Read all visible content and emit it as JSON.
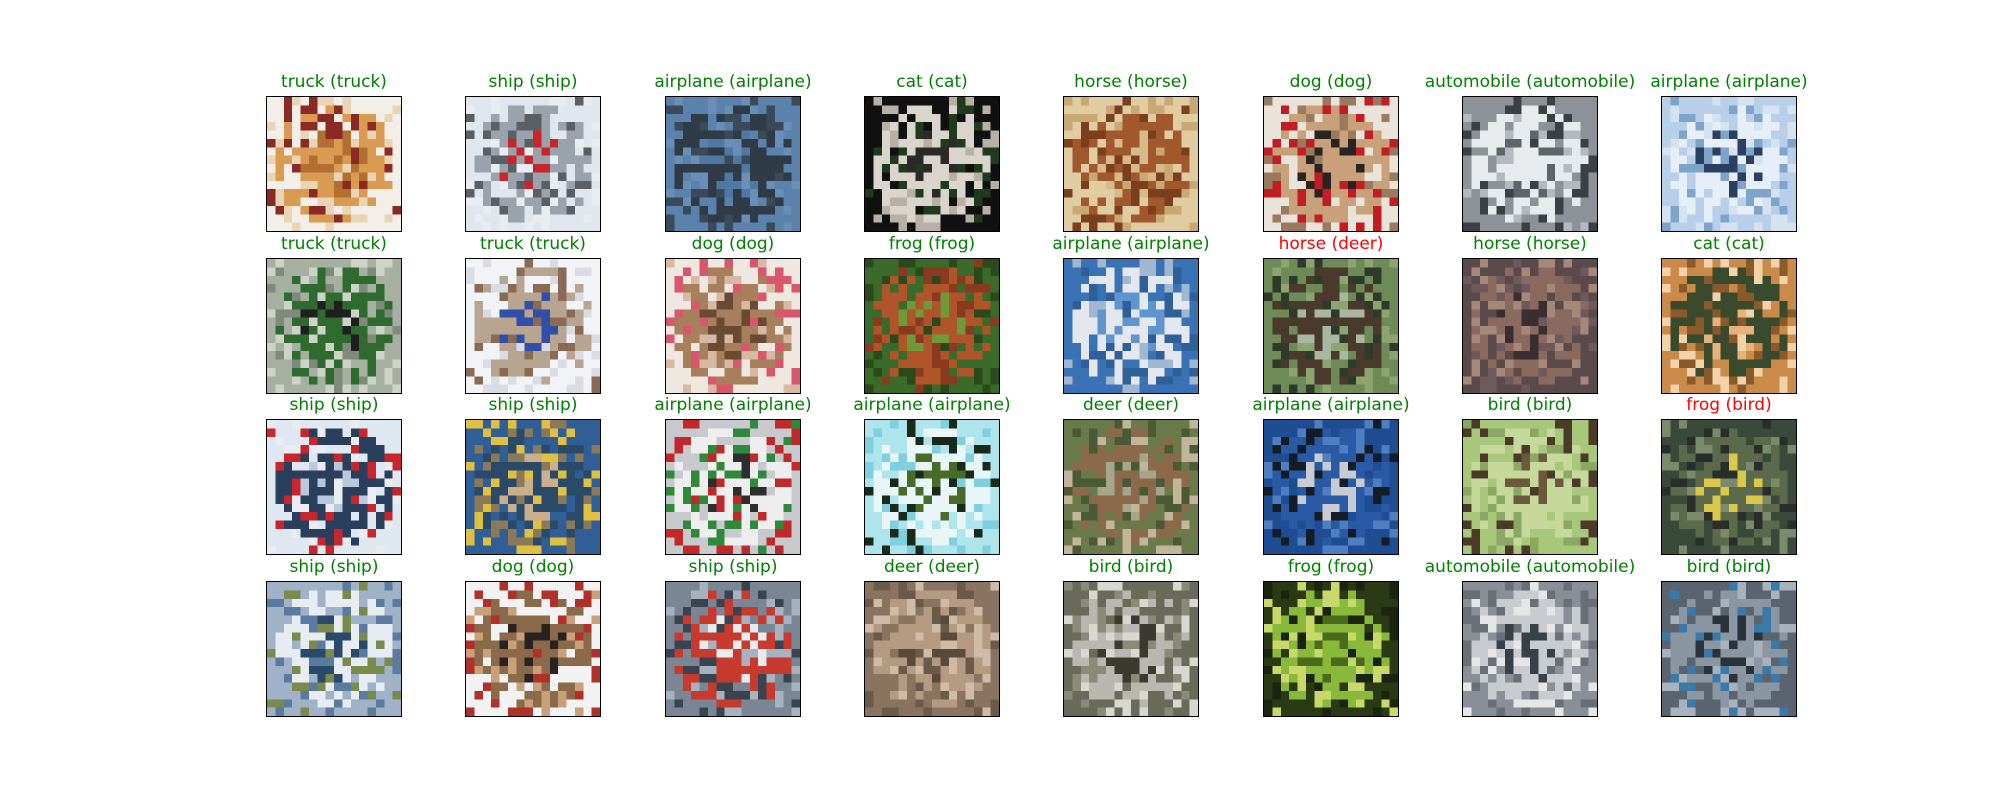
{
  "figure": {
    "colors": {
      "correct": "#008000",
      "incorrect": "#ff0000"
    },
    "images": [
      {
        "caption": "truck (truck)",
        "predicted": "truck",
        "actual": "truck",
        "correct": true,
        "icon": "truck-photo",
        "palette": [
          "#f3efe8",
          "#d99a52",
          "#b36e32",
          "#8a2a22",
          "#e9d4b5"
        ]
      },
      {
        "caption": "ship (ship)",
        "predicted": "ship",
        "actual": "ship",
        "correct": true,
        "icon": "ship-photo",
        "palette": [
          "#dfe6ee",
          "#9aa3ab",
          "#c8262c",
          "#5a5f66",
          "#e8edf2"
        ]
      },
      {
        "caption": "airplane (airplane)",
        "predicted": "airplane",
        "actual": "airplane",
        "correct": true,
        "icon": "airplane-photo",
        "palette": [
          "#5a82ad",
          "#2f3b47",
          "#4f78a2",
          "#6a8fb6",
          "#3a4a5a"
        ]
      },
      {
        "caption": "cat (cat)",
        "predicted": "cat",
        "actual": "cat",
        "correct": true,
        "icon": "cat-photo",
        "palette": [
          "#101010",
          "#d9d4cc",
          "#2c2a26",
          "#1f3a1c",
          "#b8b0a4"
        ]
      },
      {
        "caption": "horse (horse)",
        "predicted": "horse",
        "actual": "horse",
        "correct": true,
        "icon": "horse-photo",
        "palette": [
          "#e1cba1",
          "#a1582c",
          "#d7ba8a",
          "#7c3f1e",
          "#c9a874"
        ]
      },
      {
        "caption": "dog (dog)",
        "predicted": "dog",
        "actual": "dog",
        "correct": true,
        "icon": "dog-photo",
        "palette": [
          "#e9e3da",
          "#c8a07a",
          "#2a2320",
          "#c21d24",
          "#9a7a5c"
        ]
      },
      {
        "caption": "automobile (automobile)",
        "predicted": "automobile",
        "actual": "automobile",
        "correct": true,
        "icon": "automobile-photo",
        "palette": [
          "#8c9297",
          "#e8ebee",
          "#5e6469",
          "#b3b9be",
          "#3b4045"
        ]
      },
      {
        "caption": "airplane (airplane)",
        "predicted": "airplane",
        "actual": "airplane",
        "correct": true,
        "icon": "airplane-photo",
        "palette": [
          "#b7cfe8",
          "#e6eef7",
          "#2b3f60",
          "#7fa4cc",
          "#d5e3f1"
        ]
      },
      {
        "caption": "truck (truck)",
        "predicted": "truck",
        "actual": "truck",
        "correct": true,
        "icon": "truck-photo",
        "palette": [
          "#a6b0a0",
          "#2f6b2e",
          "#1f1f1f",
          "#7f8a7a",
          "#cdd3c6"
        ]
      },
      {
        "caption": "truck (truck)",
        "predicted": "truck",
        "actual": "truck",
        "correct": true,
        "icon": "truck-photo",
        "palette": [
          "#f2f3f6",
          "#b8a591",
          "#2f4fa8",
          "#8a6a52",
          "#d9dde3"
        ]
      },
      {
        "caption": "dog (dog)",
        "predicted": "dog",
        "actual": "dog",
        "correct": true,
        "icon": "dog-photo",
        "palette": [
          "#efe8e0",
          "#a77f5c",
          "#6b4a34",
          "#d8b8a2",
          "#d9566c"
        ]
      },
      {
        "caption": "frog (frog)",
        "predicted": "frog",
        "actual": "frog",
        "correct": true,
        "icon": "frog-photo",
        "palette": [
          "#3b6b2a",
          "#b0542a",
          "#6e9a3c",
          "#8a3a1e",
          "#2a4a1c"
        ]
      },
      {
        "caption": "airplane (airplane)",
        "predicted": "airplane",
        "actual": "airplane",
        "correct": true,
        "icon": "airplane-photo",
        "palette": [
          "#3a73b5",
          "#e4e8ee",
          "#5e95cc",
          "#2e5f99",
          "#9fb7d0"
        ]
      },
      {
        "caption": "horse (deer)",
        "predicted": "horse",
        "actual": "deer",
        "correct": false,
        "icon": "deer-photo",
        "palette": [
          "#6e8a56",
          "#4a3a2c",
          "#a9b7a0",
          "#2f3a2a",
          "#8ea46f"
        ]
      },
      {
        "caption": "horse (horse)",
        "predicted": "horse",
        "actual": "horse",
        "correct": true,
        "icon": "horse-photo",
        "palette": [
          "#5a4a4c",
          "#8a6a5e",
          "#3a2e30",
          "#a6887a",
          "#6e5a5c"
        ]
      },
      {
        "caption": "cat (cat)",
        "predicted": "cat",
        "actual": "cat",
        "correct": true,
        "icon": "cat-photo",
        "palette": [
          "#c98a4a",
          "#3a4a2c",
          "#e6b27a",
          "#8a5a2a",
          "#f2d2a8"
        ]
      },
      {
        "caption": "ship (ship)",
        "predicted": "ship",
        "actual": "ship",
        "correct": true,
        "icon": "ship-photo",
        "palette": [
          "#dfe7f0",
          "#2a3f5c",
          "#b9c9db",
          "#e9edf2",
          "#c8262c"
        ]
      },
      {
        "caption": "ship (ship)",
        "predicted": "ship",
        "actual": "ship",
        "correct": true,
        "icon": "ship-photo",
        "palette": [
          "#2f5f96",
          "#2a4a6a",
          "#c9b08a",
          "#8a7a5a",
          "#e0c040"
        ]
      },
      {
        "caption": "airplane (airplane)",
        "predicted": "airplane",
        "actual": "airplane",
        "correct": true,
        "icon": "airplane-photo",
        "palette": [
          "#c7c9cc",
          "#eeeeee",
          "#2e2e2e",
          "#2e8a3a",
          "#c0282a"
        ]
      },
      {
        "caption": "airplane (airplane)",
        "predicted": "airplane",
        "actual": "airplane",
        "correct": true,
        "icon": "airplane-photo",
        "palette": [
          "#aee4ec",
          "#e8f6f8",
          "#4a6a2a",
          "#1a2a1a",
          "#7fd0de"
        ]
      },
      {
        "caption": "deer (deer)",
        "predicted": "deer",
        "actual": "deer",
        "correct": true,
        "icon": "deer-photo",
        "palette": [
          "#6a7a4a",
          "#8a6a4a",
          "#a7a58a",
          "#4a5a34",
          "#c2b69a"
        ]
      },
      {
        "caption": "airplane (airplane)",
        "predicted": "airplane",
        "actual": "airplane",
        "correct": true,
        "icon": "airplane-photo",
        "palette": [
          "#1f4d94",
          "#2a5aa6",
          "#c8ccd2",
          "#141c28",
          "#4f7fc0"
        ]
      },
      {
        "caption": "bird (bird)",
        "predicted": "bird",
        "actual": "bird",
        "correct": true,
        "icon": "bird-photo",
        "palette": [
          "#a9c77a",
          "#c6d99a",
          "#6a5a3a",
          "#8aa864",
          "#4a3a28"
        ]
      },
      {
        "caption": "frog (bird)",
        "predicted": "frog",
        "actual": "bird",
        "correct": false,
        "icon": "bird-photo",
        "palette": [
          "#3a4a3a",
          "#5a6a4a",
          "#d9c84a",
          "#2a2e2a",
          "#7a8a6a"
        ]
      },
      {
        "caption": "ship (ship)",
        "predicted": "ship",
        "actual": "ship",
        "correct": true,
        "icon": "ship-photo",
        "palette": [
          "#9fb2c8",
          "#e6ecf2",
          "#2a4a6a",
          "#7a8a4a",
          "#5a7aa0"
        ]
      },
      {
        "caption": "dog (dog)",
        "predicted": "dog",
        "actual": "dog",
        "correct": true,
        "icon": "dog-photo",
        "palette": [
          "#f2f2f2",
          "#8a6a4a",
          "#2a2220",
          "#c8a07a",
          "#b0302a"
        ]
      },
      {
        "caption": "ship (ship)",
        "predicted": "ship",
        "actual": "ship",
        "correct": true,
        "icon": "ship-photo",
        "palette": [
          "#7a8694",
          "#c83a2e",
          "#e9ecef",
          "#3a4450",
          "#a7b2be"
        ]
      },
      {
        "caption": "deer (deer)",
        "predicted": "deer",
        "actual": "deer",
        "correct": true,
        "icon": "deer-photo",
        "palette": [
          "#8a7460",
          "#b49a80",
          "#5a4a3a",
          "#d0bca6",
          "#6a5a4a"
        ]
      },
      {
        "caption": "bird (bird)",
        "predicted": "bird",
        "actual": "bird",
        "correct": true,
        "icon": "bird-photo",
        "palette": [
          "#6a6a5a",
          "#b8b8b0",
          "#3a3a30",
          "#8a8a78",
          "#d8d8d0"
        ]
      },
      {
        "caption": "frog (frog)",
        "predicted": "frog",
        "actual": "frog",
        "correct": true,
        "icon": "frog-photo",
        "palette": [
          "#2a3a14",
          "#8ab83a",
          "#4a6a1c",
          "#c8d86a",
          "#1a2410"
        ]
      },
      {
        "caption": "automobile (automobile)",
        "predicted": "automobile",
        "actual": "automobile",
        "correct": true,
        "icon": "automobile-photo",
        "palette": [
          "#8a8e96",
          "#c8cbd0",
          "#3a4048",
          "#e4e6e8",
          "#6a6e76"
        ]
      },
      {
        "caption": "bird (bird)",
        "predicted": "bird",
        "actual": "bird",
        "correct": true,
        "icon": "bird-photo",
        "palette": [
          "#5a6470",
          "#8a96a2",
          "#2a323a",
          "#3a7aa8",
          "#a8b2bc"
        ]
      }
    ]
  }
}
